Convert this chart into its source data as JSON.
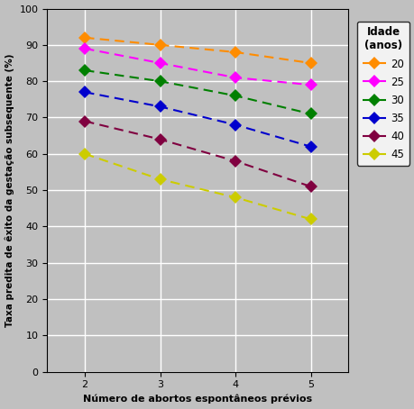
{
  "x": [
    2,
    3,
    4,
    5
  ],
  "series": [
    {
      "label": "20",
      "color": "#FF8C00",
      "values": [
        92,
        90,
        88,
        85
      ]
    },
    {
      "label": "25",
      "color": "#FF00FF",
      "values": [
        89,
        85,
        81,
        79
      ]
    },
    {
      "label": "30",
      "color": "#008000",
      "values": [
        83,
        80,
        76,
        71
      ]
    },
    {
      "label": "35",
      "color": "#0000CD",
      "values": [
        77,
        73,
        68,
        62
      ]
    },
    {
      "label": "40",
      "color": "#800040",
      "values": [
        69,
        64,
        58,
        51
      ]
    },
    {
      "label": "45",
      "color": "#CCCC00",
      "values": [
        60,
        53,
        48,
        42
      ]
    }
  ],
  "xlabel": "Número de abortos espontâneos prévios",
  "ylabel": "Taxa predita de êxito da gestação subsequente (%)",
  "legend_title": "Idade\n(anos)",
  "ylim": [
    0,
    100
  ],
  "xlim": [
    1.5,
    5.5
  ],
  "yticks": [
    0,
    10,
    20,
    30,
    40,
    50,
    60,
    70,
    80,
    90,
    100
  ],
  "xticks": [
    2,
    3,
    4,
    5
  ],
  "bg_color": "#C0C0C0",
  "fig_bg_color": "#C0C0C0",
  "grid_color": "#FFFFFF",
  "legend_bg": "#FFFFFF"
}
